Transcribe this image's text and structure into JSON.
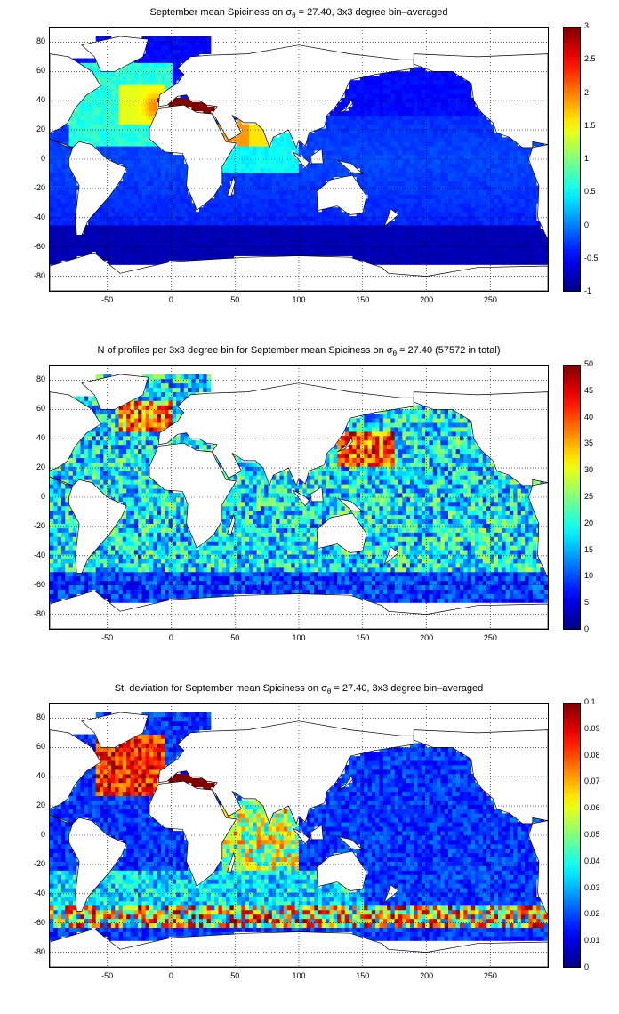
{
  "panels": [
    {
      "title_main": "September mean Spiciness on σ",
      "title_sub": "θ",
      "title_rest": " = 27.40, 3x3 degree bin–averaged",
      "colorbar_ticks": [
        "3",
        "2.5",
        "2",
        "1.5",
        "1",
        "0.5",
        "0",
        "-0.5",
        "-1"
      ],
      "clim": [
        -1,
        3
      ],
      "field": "spice"
    },
    {
      "title_main": "N of profiles per 3x3 degree bin for September mean Spiciness on σ",
      "title_sub": "θ",
      "title_rest": " = 27.40 (57572 in total)",
      "colorbar_ticks": [
        "50",
        "45",
        "40",
        "35",
        "30",
        "25",
        "20",
        "15",
        "10",
        "5",
        "0"
      ],
      "clim": [
        0,
        50
      ],
      "field": "count"
    },
    {
      "title_main": "St. deviation for September mean Spiciness on σ",
      "title_sub": "θ",
      "title_rest": " = 27.40, 3x3 degree bin–averaged",
      "colorbar_ticks": [
        "0.1",
        "0.09",
        "0.08",
        "0.07",
        "0.06",
        "0.05",
        "0.04",
        "0.03",
        "0.02",
        "0.01",
        "0"
      ],
      "clim": [
        0,
        0.1
      ],
      "field": "std"
    }
  ],
  "axes": {
    "x_ticks": [
      "-50",
      "0",
      "50",
      "100",
      "150",
      "200",
      "250"
    ],
    "y_ticks": [
      "80",
      "60",
      "40",
      "20",
      "0",
      "-20",
      "-40",
      "-60",
      "-80"
    ],
    "xlim": [
      -95,
      295
    ],
    "ylim": [
      -90,
      90
    ],
    "grid": "dotted"
  }
}
